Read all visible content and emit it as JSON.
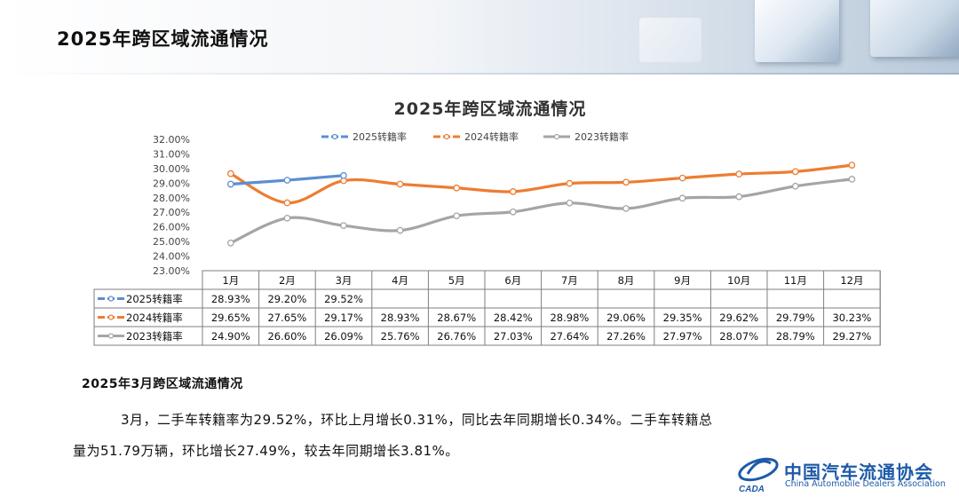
{
  "page": {
    "title": "2025年跨区域流通情况",
    "section_title": "2025年3月跨区域流通情况",
    "paragraph_1": "3月，二手车转籍率为29.52%，环比上月增长0.31%，同比去年同期增长0.34%。二手车转籍总",
    "paragraph_2": "量为51.79万辆，环比增长27.49%，较去年同期增长3.81%。"
  },
  "logo": {
    "name_cn": "中国汽车流通协会",
    "name_en": "China Automobile Dealers Association",
    "mark_text": "CADA"
  },
  "chart_data": {
    "type": "line",
    "title": "2025年跨区域流通情况",
    "categories": [
      "1月",
      "2月",
      "3月",
      "4月",
      "5月",
      "6月",
      "7月",
      "8月",
      "9月",
      "10月",
      "11月",
      "12月"
    ],
    "y_ticks": [
      "32.00%",
      "31.00%",
      "30.00%",
      "29.00%",
      "28.00%",
      "27.00%",
      "26.00%",
      "25.00%",
      "24.00%",
      "23.00%"
    ],
    "ylim": [
      23,
      32
    ],
    "grid": false,
    "legend_position": "top",
    "series": [
      {
        "name": "2025转籍率",
        "color": "#5b8fd0",
        "values": [
          28.93,
          29.2,
          29.52,
          null,
          null,
          null,
          null,
          null,
          null,
          null,
          null,
          null
        ],
        "labels": [
          "28.93%",
          "29.20%",
          "29.52%",
          "",
          "",
          "",
          "",
          "",
          "",
          "",
          "",
          ""
        ]
      },
      {
        "name": "2024转籍率",
        "color": "#ed7d31",
        "values": [
          29.65,
          27.65,
          29.17,
          28.93,
          28.67,
          28.42,
          28.98,
          29.06,
          29.35,
          29.62,
          29.79,
          30.23
        ],
        "labels": [
          "29.65%",
          "27.65%",
          "29.17%",
          "28.93%",
          "28.67%",
          "28.42%",
          "28.98%",
          "29.06%",
          "29.35%",
          "29.62%",
          "29.79%",
          "30.23%"
        ]
      },
      {
        "name": "2023转籍率",
        "color": "#a5a5a5",
        "values": [
          24.9,
          26.6,
          26.09,
          25.76,
          26.76,
          27.03,
          27.64,
          27.26,
          27.97,
          28.07,
          28.79,
          29.27
        ],
        "labels": [
          "24.90%",
          "26.60%",
          "26.09%",
          "25.76%",
          "26.76%",
          "27.03%",
          "27.64%",
          "27.26%",
          "27.97%",
          "28.07%",
          "28.79%",
          "29.27%"
        ]
      }
    ]
  }
}
